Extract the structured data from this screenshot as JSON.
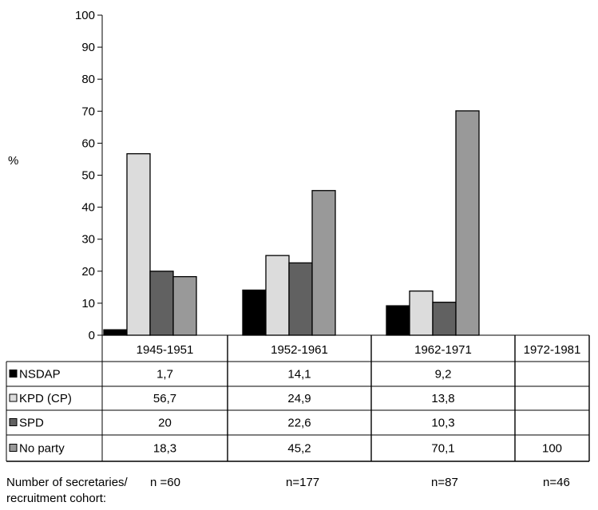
{
  "chart_data": {
    "type": "bar",
    "ylabel": "%",
    "ylim": [
      0,
      100
    ],
    "yticks": [
      0,
      10,
      20,
      30,
      40,
      50,
      60,
      70,
      80,
      90,
      100
    ],
    "categories": [
      "1945-1951",
      "1952-1961",
      "1962-1971",
      "1972-1981"
    ],
    "series": [
      {
        "name": "NSDAP",
        "color": "#000000",
        "values": [
          1.7,
          14.1,
          9.2,
          null
        ],
        "labels": [
          "1,7",
          "14,1",
          "9,2",
          ""
        ]
      },
      {
        "name": "KPD (CP)",
        "color": "#dcdcdc",
        "values": [
          56.7,
          24.9,
          13.8,
          null
        ],
        "labels": [
          "56,7",
          "24,9",
          "13,8",
          ""
        ]
      },
      {
        "name": "SPD",
        "color": "#616161",
        "values": [
          20,
          22.6,
          10.3,
          null
        ],
        "labels": [
          "20",
          "22,6",
          "10,3",
          ""
        ]
      },
      {
        "name": "No party",
        "color": "#999999",
        "values": [
          18.3,
          45.2,
          70.1,
          100
        ],
        "labels": [
          "18,3",
          "45,2",
          "70,1",
          "100"
        ]
      }
    ],
    "legend": "table-rows-left"
  },
  "footer": {
    "label_line1": "Number of secretaries/",
    "label_line2": "recruitment cohort:",
    "counts": [
      "n =60",
      "n=177",
      "n=87",
      "n=46"
    ]
  }
}
